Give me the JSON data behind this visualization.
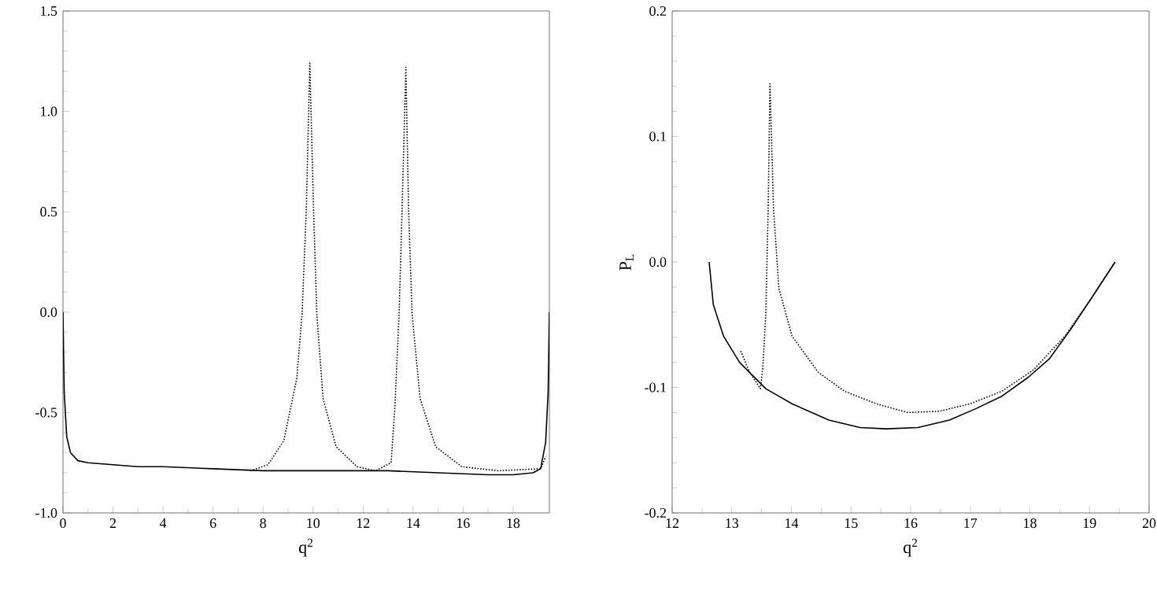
{
  "chart_data": [
    {
      "type": "line",
      "xlabel": "q$^{2}$",
      "xlim": [
        0,
        19.45
      ],
      "ylim": [
        -1.0,
        1.5
      ],
      "xticks": [
        0,
        2,
        4,
        6,
        8,
        10,
        12,
        14,
        16,
        18
      ],
      "yticks": [
        {
          "value": -1,
          "label": "-1.0"
        },
        -0.5,
        {
          "value": 0,
          "label": "0.0"
        },
        0.5,
        {
          "value": 1,
          "label": "1.0"
        },
        1.5
      ],
      "series": [
        {
          "color": "#000000",
          "line_style": "solid",
          "x": [
            0,
            0.05,
            0.15,
            0.3,
            0.6,
            1,
            2,
            3,
            4,
            6,
            8,
            10,
            12,
            13,
            15,
            17,
            18,
            18.8,
            19.1,
            19.3,
            19.4,
            19.45
          ],
          "values": [
            0,
            -0.4,
            -0.62,
            -0.7,
            -0.74,
            -0.75,
            -0.76,
            -0.77,
            -0.77,
            -0.78,
            -0.79,
            -0.79,
            -0.79,
            -0.79,
            -0.8,
            -0.81,
            -0.81,
            -0.8,
            -0.78,
            -0.65,
            -0.4,
            0
          ]
        },
        {
          "color": "#000000",
          "line_style": "dotted",
          "x": [
            7.5,
            8.2,
            8.83,
            9.35,
            9.56,
            9.73,
            9.83,
            9.87,
            10.02,
            10.15,
            10.4,
            10.92,
            11.76,
            12.5,
            13.12,
            13.27,
            13.44,
            13.56,
            13.67,
            13.71,
            13.82,
            13.96,
            14.28,
            14.9,
            15.95,
            17.4,
            19.1,
            19.3
          ],
          "values": [
            -0.79,
            -0.76,
            -0.64,
            -0.33,
            -0.01,
            0.51,
            1.03,
            1.24,
            0.51,
            -0.01,
            -0.43,
            -0.67,
            -0.77,
            -0.79,
            -0.75,
            -0.48,
            -0.01,
            0.51,
            1.03,
            1.22,
            0.51,
            -0.01,
            -0.43,
            -0.67,
            -0.77,
            -0.79,
            -0.78,
            -0.72
          ]
        }
      ]
    },
    {
      "type": "line",
      "xlabel": "q$^{2}$",
      "ylabel": "P$_{L}$",
      "xlim": [
        12,
        20
      ],
      "ylim": [
        -0.2,
        0.2
      ],
      "xticks": [
        12,
        13,
        14,
        15,
        16,
        17,
        18,
        19,
        20
      ],
      "yticks": [
        -0.2,
        -0.1,
        {
          "value": 0,
          "label": "0.0"
        },
        0.1,
        0.2
      ],
      "series": [
        {
          "color": "#000000",
          "line_style": "solid",
          "x": [
            12.62,
            12.69,
            12.86,
            13.13,
            13.57,
            14.01,
            14.63,
            15.15,
            15.59,
            16.12,
            16.65,
            17.09,
            17.53,
            17.97,
            18.33,
            18.68,
            19.03,
            19.43
          ],
          "values": [
            0.0,
            -0.034,
            -0.059,
            -0.08,
            -0.101,
            -0.113,
            -0.126,
            -0.132,
            -0.133,
            -0.132,
            -0.126,
            -0.117,
            -0.107,
            -0.092,
            -0.077,
            -0.054,
            -0.029,
            0.0
          ]
        },
        {
          "color": "#000000",
          "line_style": "dotted",
          "x": [
            13.15,
            13.3,
            13.48,
            13.52,
            13.57,
            13.61,
            13.64,
            13.7,
            13.79,
            14.01,
            14.45,
            14.89,
            15.42,
            15.95,
            16.48,
            17.0,
            17.53,
            18.06,
            18.59,
            19.03,
            19.43
          ],
          "values": [
            -0.071,
            -0.088,
            -0.101,
            -0.084,
            -0.042,
            0.042,
            0.142,
            0.042,
            -0.021,
            -0.059,
            -0.088,
            -0.103,
            -0.113,
            -0.12,
            -0.119,
            -0.113,
            -0.103,
            -0.086,
            -0.059,
            -0.029,
            0.0
          ]
        }
      ]
    }
  ]
}
